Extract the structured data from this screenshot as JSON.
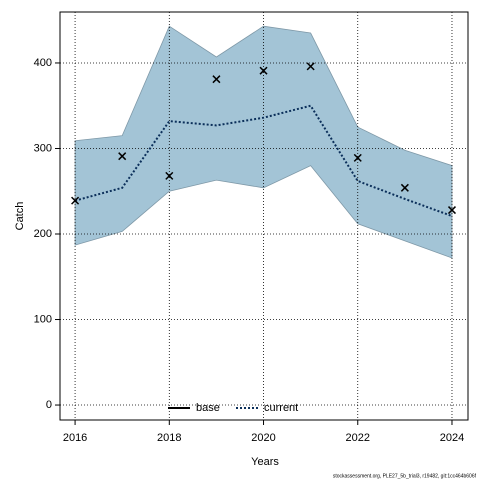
{
  "chart_data": {
    "type": "line",
    "xlabel": "Years",
    "ylabel": "Catch",
    "x": [
      2016,
      2017,
      2018,
      2019,
      2020,
      2021,
      2022,
      2023,
      2024
    ],
    "series": [
      {
        "name": "base",
        "color": "#000000",
        "values": [
          null,
          null,
          null,
          null,
          null,
          null,
          null,
          null,
          null
        ]
      },
      {
        "name": "current",
        "color": "#0b2f5a",
        "values": [
          239,
          254,
          332,
          327,
          336,
          350,
          262,
          241,
          221
        ]
      }
    ],
    "band": {
      "color": "#a3c4d6",
      "upper": [
        309,
        315,
        443,
        407,
        443,
        435,
        325,
        298,
        280
      ],
      "lower": [
        187,
        203,
        250,
        263,
        254,
        280,
        212,
        192,
        172
      ]
    },
    "points": {
      "color": "#000000",
      "values": [
        239,
        291,
        268,
        381,
        391,
        396,
        289,
        254,
        228
      ]
    },
    "xlim": [
      2015.68,
      2024.34
    ],
    "ylim": [
      -17.5,
      459.6
    ],
    "xticks": [
      2016,
      2018,
      2020,
      2022,
      2024
    ],
    "yticks": [
      0,
      100,
      200,
      300,
      400
    ],
    "grid": true,
    "legend": "bottom",
    "footer": "stockassessment.org, PLE27_5b_trial3, r19482, git:1cc464b606f"
  }
}
